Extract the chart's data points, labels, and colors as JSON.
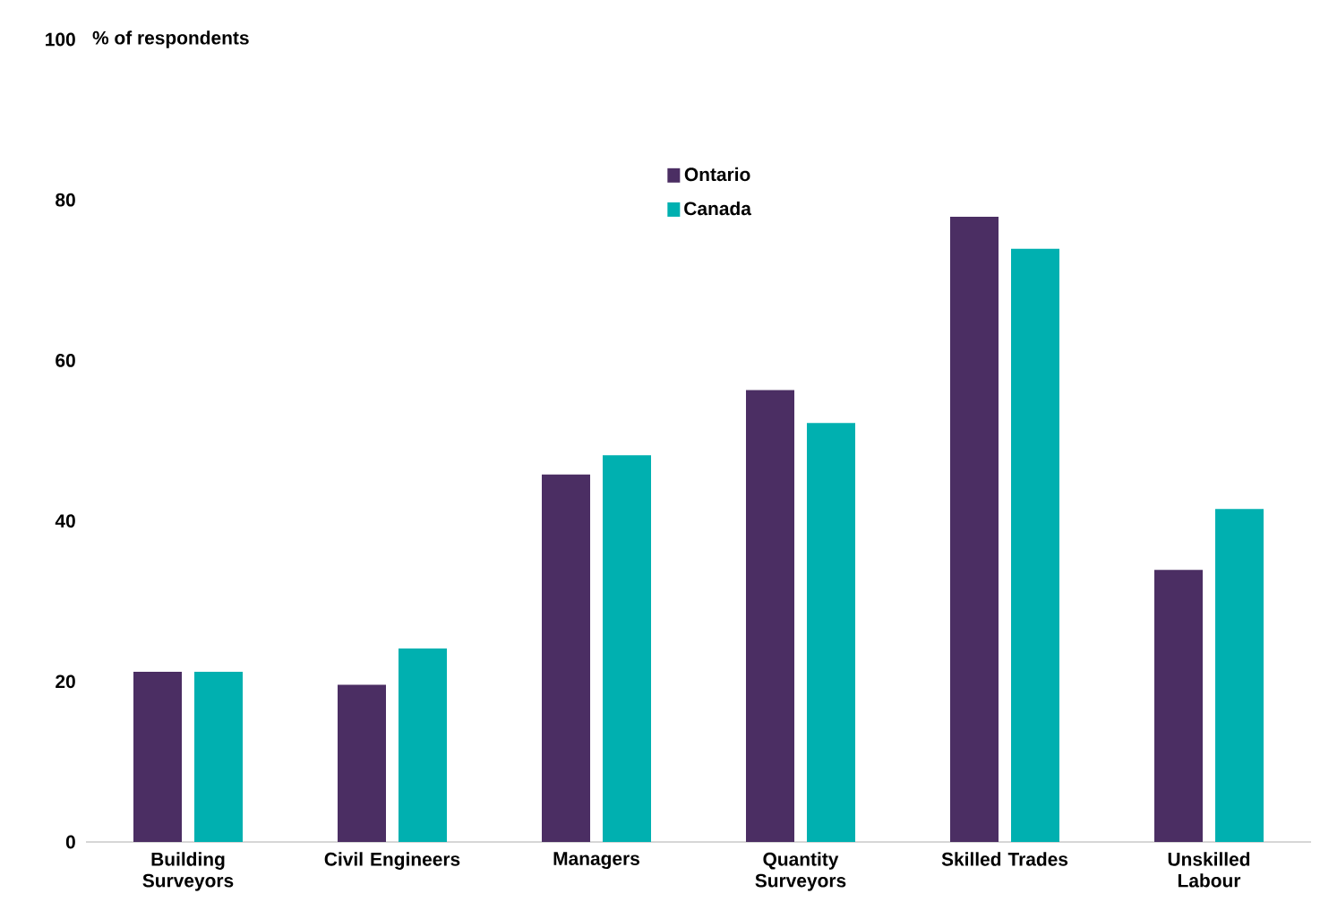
{
  "chart_data": {
    "type": "bar",
    "ylabel": "% of respondents",
    "categories": [
      "Building Surveyors",
      "Civil Engineers",
      "Managers",
      "Quantity Surveyors",
      "Skilled Trades",
      "Unskilled Labour"
    ],
    "series": [
      {
        "name": "Ontario",
        "color": "#4b2e63",
        "values": [
          21.2,
          19.6,
          45.8,
          56.3,
          77.9,
          33.9
        ]
      },
      {
        "name": "Canada",
        "color": "#00b0b0",
        "values": [
          21.2,
          24.1,
          48.2,
          52.2,
          73.9,
          41.5
        ]
      }
    ],
    "ylim": [
      0,
      100
    ],
    "yticks": [
      0,
      20,
      40,
      60,
      80,
      100
    ],
    "legend": "top",
    "grid": false
  }
}
